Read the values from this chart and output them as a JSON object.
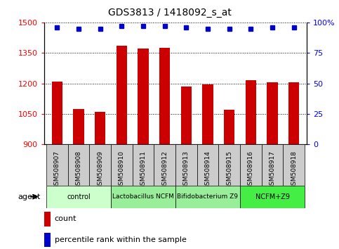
{
  "title": "GDS3813 / 1418092_s_at",
  "samples": [
    "GSM508907",
    "GSM508908",
    "GSM508909",
    "GSM508910",
    "GSM508911",
    "GSM508912",
    "GSM508913",
    "GSM508914",
    "GSM508915",
    "GSM508916",
    "GSM508917",
    "GSM508918"
  ],
  "counts": [
    1210,
    1075,
    1060,
    1385,
    1370,
    1375,
    1185,
    1195,
    1070,
    1215,
    1205,
    1205
  ],
  "percentile_ranks": [
    96,
    95,
    95,
    97,
    97,
    97,
    96,
    95,
    95,
    95,
    96,
    96
  ],
  "ylim_left": [
    900,
    1500
  ],
  "ylim_right": [
    0,
    100
  ],
  "yticks_left": [
    900,
    1050,
    1200,
    1350,
    1500
  ],
  "yticks_right": [
    0,
    25,
    50,
    75,
    100
  ],
  "bar_color": "#cc0000",
  "dot_color": "#0000cc",
  "groups": [
    {
      "label": "control",
      "spans": [
        0,
        1,
        2
      ],
      "color": "#ccffcc"
    },
    {
      "label": "Lactobacillus NCFM",
      "spans": [
        3,
        4,
        5
      ],
      "color": "#99ee99"
    },
    {
      "label": "Bifidobacterium Z9",
      "spans": [
        6,
        7,
        8
      ],
      "color": "#99ee99"
    },
    {
      "label": "NCFM+Z9",
      "spans": [
        9,
        10,
        11
      ],
      "color": "#44ee44"
    }
  ],
  "sample_box_color": "#cccccc",
  "legend_count_color": "#cc0000",
  "legend_dot_color": "#0000cc"
}
